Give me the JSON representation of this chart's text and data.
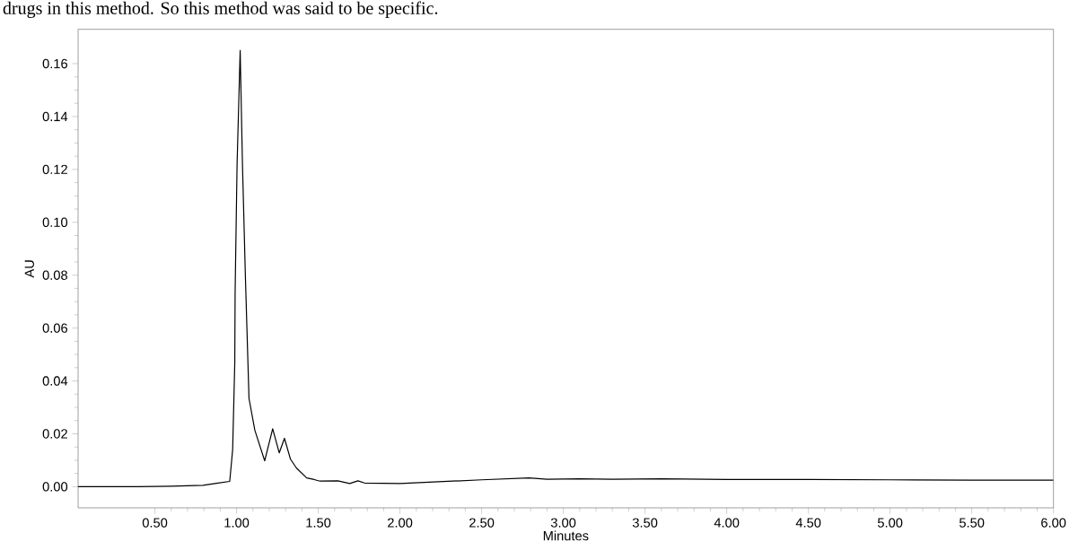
{
  "chart_data": {
    "type": "line",
    "xlabel": "Minutes",
    "ylabel": "AU",
    "annotations": [
      "drugs in this method. So this method was said to be specific."
    ],
    "x": [
      0.03,
      0.2,
      0.4,
      0.6,
      0.795,
      0.877,
      0.958,
      0.976,
      0.989,
      0.991,
      1.003,
      1.022,
      1.036,
      1.054,
      1.076,
      1.112,
      1.172,
      1.221,
      1.261,
      1.293,
      1.33,
      1.366,
      1.429,
      1.475,
      1.511,
      1.62,
      1.692,
      1.743,
      1.783,
      2.0,
      2.5,
      2.79,
      2.9,
      3.1,
      3.3,
      3.6,
      4.0,
      4.5,
      5.0,
      5.5,
      6.0
    ],
    "values": [
      0.0,
      0.0,
      0.0,
      0.0002,
      0.0005,
      0.0013,
      0.002,
      0.014,
      0.047,
      0.073,
      0.122,
      0.165,
      0.122,
      0.0795,
      0.0334,
      0.0213,
      0.0098,
      0.0219,
      0.0128,
      0.0183,
      0.0104,
      0.0071,
      0.0033,
      0.0027,
      0.0021,
      0.0022,
      0.0012,
      0.0022,
      0.0014,
      0.0012,
      0.0026,
      0.0033,
      0.0028,
      0.003,
      0.0028,
      0.003,
      0.0027,
      0.0027,
      0.0026,
      0.0025,
      0.0025
    ],
    "color": "#000000",
    "xlim": [
      0.03,
      6.0
    ],
    "ylim": [
      -0.008,
      0.173
    ],
    "xticks": [
      {
        "value": 0.5,
        "label": "0.50"
      },
      {
        "value": 1.0,
        "label": "1.00"
      },
      {
        "value": 1.5,
        "label": "1.50"
      },
      {
        "value": 2.0,
        "label": "2.00"
      },
      {
        "value": 2.5,
        "label": "2.50"
      },
      {
        "value": 3.0,
        "label": "3.00"
      },
      {
        "value": 3.5,
        "label": "3.50"
      },
      {
        "value": 4.0,
        "label": "4.00"
      },
      {
        "value": 4.5,
        "label": "4.50"
      },
      {
        "value": 5.0,
        "label": "5.00"
      },
      {
        "value": 5.5,
        "label": "5.50"
      },
      {
        "value": 6.0,
        "label": "6.00"
      }
    ],
    "yticks": [
      {
        "value": 0.0,
        "label": "0.00"
      },
      {
        "value": 0.02,
        "label": "0.02"
      },
      {
        "value": 0.04,
        "label": "0.04"
      },
      {
        "value": 0.06,
        "label": "0.06"
      },
      {
        "value": 0.08,
        "label": "0.08"
      },
      {
        "value": 0.1,
        "label": "0.10"
      },
      {
        "value": 0.12,
        "label": "0.12"
      },
      {
        "value": 0.14,
        "label": "0.14"
      },
      {
        "value": 0.16,
        "label": "0.16"
      }
    ]
  }
}
